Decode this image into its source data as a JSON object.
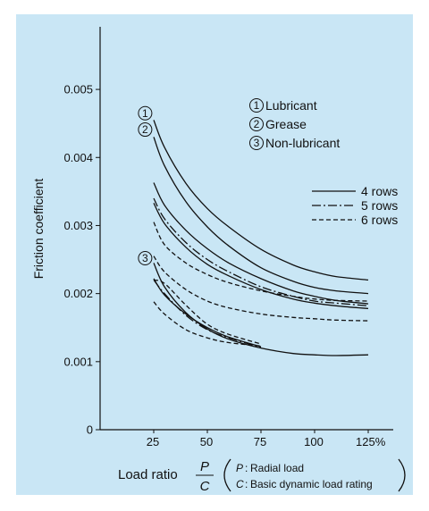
{
  "chart_data": {
    "type": "line",
    "title": "",
    "ylabel": "Friction coefficient",
    "xlabel": "Load ratio",
    "xlabel_fraction": {
      "numerator": "P",
      "denominator": "C"
    },
    "xlabel_notes": [
      {
        "symbol": "P",
        "text": "Radial load"
      },
      {
        "symbol": "C",
        "text": "Basic dynamic load rating"
      }
    ],
    "xlim": [
      0,
      125
    ],
    "ylim": [
      0,
      0.0055
    ],
    "x_ticks": [
      {
        "value": 25,
        "label": "25"
      },
      {
        "value": 50,
        "label": "50"
      },
      {
        "value": 75,
        "label": "75"
      },
      {
        "value": 100,
        "label": "100"
      },
      {
        "value": 125,
        "label": "125%"
      }
    ],
    "y_ticks": [
      {
        "value": 0,
        "label": "0"
      },
      {
        "value": 0.001,
        "label": "0.001"
      },
      {
        "value": 0.002,
        "label": "0.002"
      },
      {
        "value": 0.003,
        "label": "0.003"
      },
      {
        "value": 0.004,
        "label": "0.004"
      },
      {
        "value": 0.005,
        "label": "0.005"
      }
    ],
    "condition_legend": [
      {
        "marker": "1",
        "label": "Lubricant"
      },
      {
        "marker": "2",
        "label": "Grease"
      },
      {
        "marker": "3",
        "label": "Non-lubricant"
      }
    ],
    "style_legend": [
      {
        "style": "solid",
        "label": "4 rows"
      },
      {
        "style": "dashdot",
        "label": "5 rows"
      },
      {
        "style": "dashed",
        "label": "6 rows"
      }
    ],
    "curve_markers": [
      {
        "label": "1",
        "x": 21,
        "y": 0.00465
      },
      {
        "label": "2",
        "x": 21,
        "y": 0.00441
      },
      {
        "label": "3",
        "x": 21,
        "y": 0.00252
      }
    ],
    "series": [
      {
        "style": "solid",
        "condition": "1",
        "x": [
          25,
          30,
          40,
          50,
          60,
          75,
          90,
          100,
          110,
          125
        ],
        "y": [
          0.00455,
          0.00415,
          0.00362,
          0.00325,
          0.00298,
          0.00265,
          0.00242,
          0.00232,
          0.00225,
          0.0022
        ]
      },
      {
        "style": "solid",
        "condition": "2",
        "x": [
          25,
          30,
          40,
          50,
          60,
          75,
          90,
          100,
          110,
          125
        ],
        "y": [
          0.0043,
          0.00388,
          0.00335,
          0.00298,
          0.0027,
          0.00238,
          0.00218,
          0.00209,
          0.00204,
          0.002
        ]
      },
      {
        "style": "solid",
        "condition": "1",
        "x": [
          25,
          30,
          40,
          50,
          60,
          75,
          90,
          100,
          110,
          125
        ],
        "y": [
          0.00363,
          0.0033,
          0.00293,
          0.00266,
          0.00245,
          0.00222,
          0.00204,
          0.00196,
          0.0019,
          0.00185
        ]
      },
      {
        "style": "dashdot",
        "condition": "1",
        "x": [
          25,
          30,
          40,
          50,
          60,
          75,
          90,
          100,
          110,
          125
        ],
        "y": [
          0.0034,
          0.0031,
          0.00275,
          0.0025,
          0.00232,
          0.0021,
          0.00196,
          0.00189,
          0.00186,
          0.00182
        ]
      },
      {
        "style": "solid",
        "condition": "2",
        "x": [
          25,
          30,
          40,
          50,
          60,
          75,
          90,
          100,
          110,
          125
        ],
        "y": [
          0.00333,
          0.00303,
          0.00268,
          0.00243,
          0.00226,
          0.00206,
          0.00192,
          0.00186,
          0.00182,
          0.00178
        ]
      },
      {
        "style": "dashed",
        "condition": "1",
        "x": [
          25,
          30,
          40,
          50,
          60,
          75,
          90,
          100,
          110,
          125
        ],
        "y": [
          0.00305,
          0.00272,
          0.00245,
          0.00228,
          0.00216,
          0.00204,
          0.00196,
          0.00192,
          0.0019,
          0.00189
        ]
      },
      {
        "style": "dashed",
        "condition": "2",
        "x": [
          25,
          30,
          40,
          50,
          60,
          75,
          90,
          100,
          110,
          125
        ],
        "y": [
          0.00255,
          0.00232,
          0.00206,
          0.00189,
          0.00179,
          0.0017,
          0.00165,
          0.00163,
          0.00161,
          0.0016
        ]
      },
      {
        "style": "solid",
        "condition": "3",
        "x": [
          25,
          30,
          40,
          50,
          60,
          75,
          90,
          100,
          110,
          125
        ],
        "y": [
          0.00245,
          0.0021,
          0.00172,
          0.00148,
          0.00133,
          0.0012,
          0.00112,
          0.0011,
          0.00109,
          0.0011
        ]
      },
      {
        "style": "solid",
        "condition": "3",
        "x": [
          25,
          30,
          40,
          50,
          60,
          75
        ],
        "y": [
          0.00222,
          0.00198,
          0.0017,
          0.0015,
          0.00136,
          0.00122
        ]
      },
      {
        "style": "dashdot",
        "condition": "3",
        "x": [
          25,
          30,
          40,
          50,
          60,
          75
        ],
        "y": [
          0.0022,
          0.002,
          0.00168,
          0.00147,
          0.00135,
          0.00121
        ]
      },
      {
        "style": "dashed",
        "condition": "3",
        "x": [
          25,
          30,
          40,
          50,
          60,
          75
        ],
        "y": [
          0.0022,
          0.00215,
          0.00183,
          0.00155,
          0.0014,
          0.00126
        ]
      },
      {
        "style": "dashed",
        "condition": "3",
        "x": [
          25,
          30,
          40,
          50,
          60,
          75
        ],
        "y": [
          0.00188,
          0.0017,
          0.00147,
          0.00135,
          0.00128,
          0.00123
        ]
      }
    ]
  }
}
